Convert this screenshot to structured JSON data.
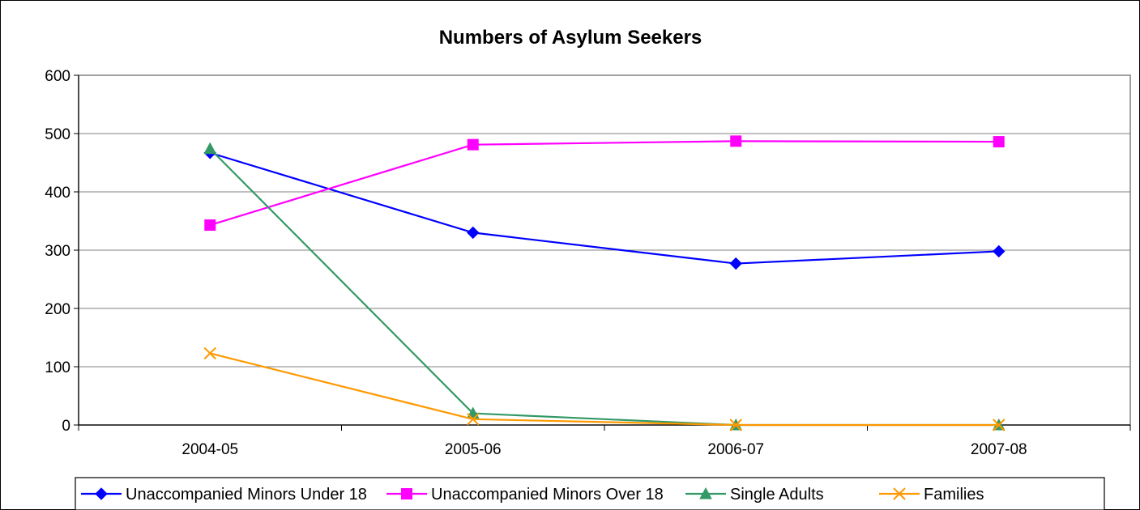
{
  "chart_data": {
    "type": "line",
    "title": "Numbers of Asylum Seekers",
    "xlabel": "",
    "ylabel": "",
    "categories": [
      "2004-05",
      "2005-06",
      "2006-07",
      "2007-08"
    ],
    "ylim": [
      0,
      600
    ],
    "yticks": [
      0,
      100,
      200,
      300,
      400,
      500,
      600
    ],
    "grid": true,
    "legend_position": "bottom",
    "series": [
      {
        "name": "Unaccompanied Minors Under 18",
        "values": [
          467,
          330,
          277,
          298
        ],
        "color": "#0000ff",
        "marker": "diamond"
      },
      {
        "name": "Unaccompanied Minors Over 18",
        "values": [
          343,
          481,
          487,
          486
        ],
        "color": "#ff00ff",
        "marker": "square"
      },
      {
        "name": "Single Adults",
        "values": [
          474,
          20,
          0,
          0
        ],
        "color": "#339966",
        "marker": "triangle"
      },
      {
        "name": "Families",
        "values": [
          123,
          10,
          0,
          0
        ],
        "color": "#ff9900",
        "marker": "x"
      }
    ]
  }
}
